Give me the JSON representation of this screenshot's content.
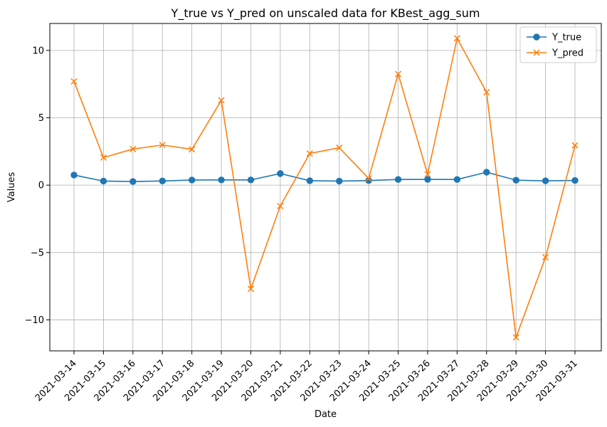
{
  "chart_data": {
    "type": "line",
    "title": "Y_true vs Y_pred on unscaled data for KBest_agg_sum",
    "xlabel": "Date",
    "ylabel": "Values",
    "x": [
      "2021-03-14",
      "2021-03-15",
      "2021-03-16",
      "2021-03-17",
      "2021-03-18",
      "2021-03-19",
      "2021-03-20",
      "2021-03-21",
      "2021-03-22",
      "2021-03-23",
      "2021-03-24",
      "2021-03-25",
      "2021-03-26",
      "2021-03-27",
      "2021-03-28",
      "2021-03-29",
      "2021-03-30",
      "2021-03-31"
    ],
    "ylim": [
      -12.3,
      12.0
    ],
    "yticks": [
      -10,
      -5,
      0,
      5,
      10
    ],
    "ytick_labels": [
      "−10",
      "−5",
      "0",
      "5",
      "10"
    ],
    "grid": true,
    "legend_position": "top-right",
    "series": [
      {
        "name": "Y_true",
        "marker": "circle",
        "color": "#1f77b4",
        "values": [
          0.75,
          0.3,
          0.27,
          0.31,
          0.38,
          0.39,
          0.39,
          0.86,
          0.33,
          0.3,
          0.34,
          0.42,
          0.43,
          0.42,
          0.96,
          0.37,
          0.32,
          0.35
        ]
      },
      {
        "name": "Y_pred",
        "marker": "x",
        "color": "#ff7f0e",
        "values": [
          7.7,
          2.05,
          2.68,
          2.98,
          2.66,
          6.3,
          -7.7,
          -1.55,
          2.35,
          2.78,
          0.5,
          8.25,
          0.8,
          10.9,
          6.9,
          -11.3,
          -5.35,
          2.95
        ]
      }
    ]
  }
}
